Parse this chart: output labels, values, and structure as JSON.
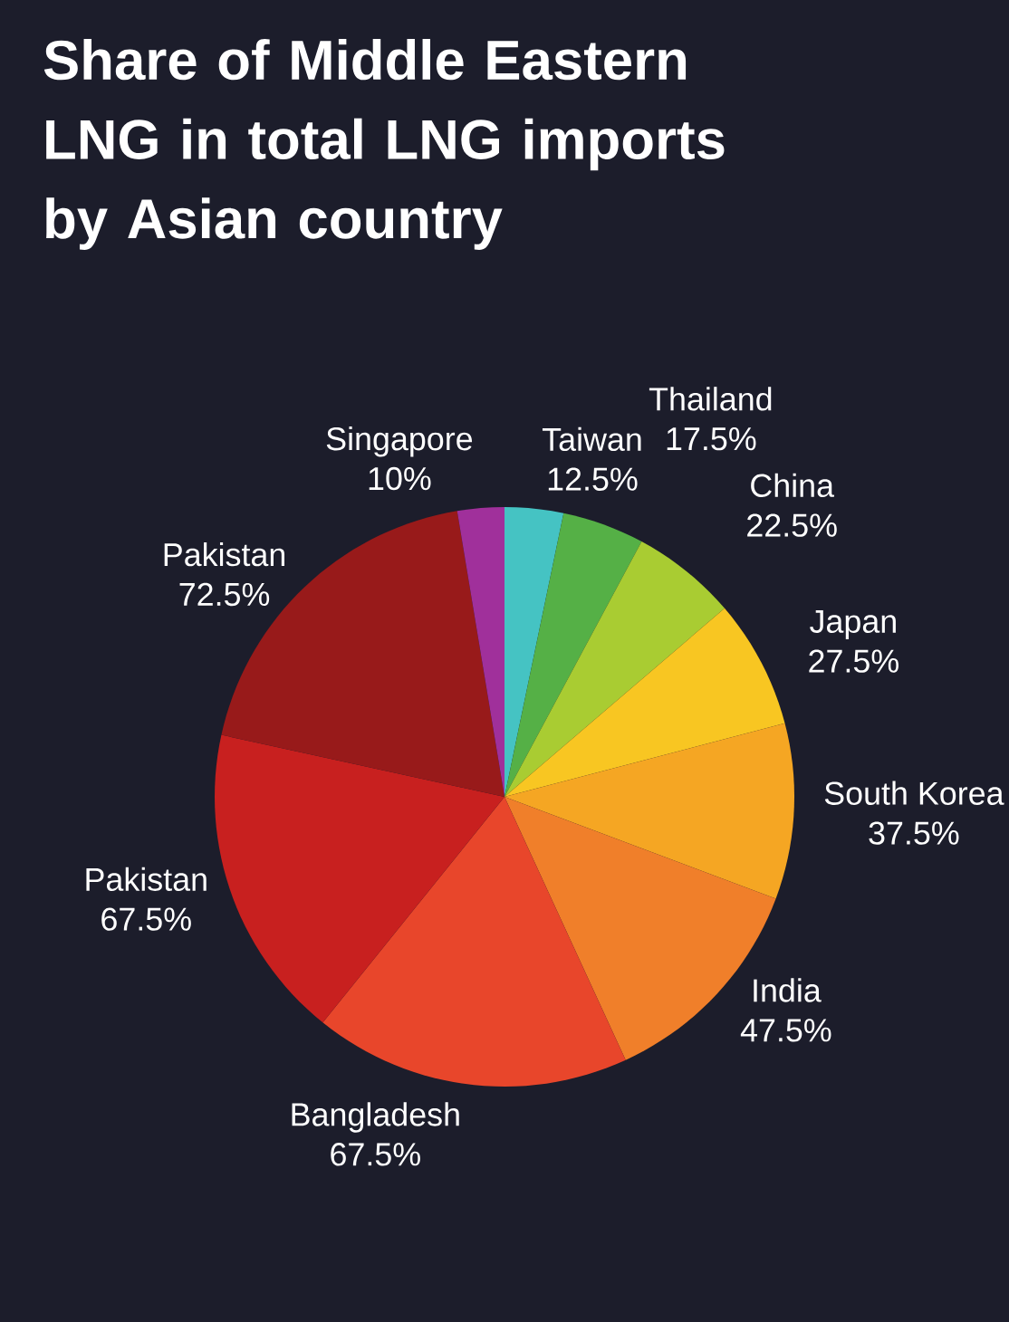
{
  "chart_data": {
    "type": "pie",
    "title": "Share of Middle Eastern LNG in total LNG imports by Asian country",
    "categories": [
      "Taiwan",
      "Thailand",
      "China",
      "Japan",
      "South Korea",
      "India",
      "Bangladesh",
      "Pakistan",
      "Pakistan",
      "Singapore"
    ],
    "values": [
      12.5,
      17.5,
      22.5,
      27.5,
      37.5,
      47.5,
      67.5,
      67.5,
      72.5,
      10
    ],
    "value_labels": [
      "12.5%",
      "17.5%",
      "22.5%",
      "27.5%",
      "37.5%",
      "47.5%",
      "67.5%",
      "67.5%",
      "72.5%",
      "10%"
    ],
    "colors": [
      "#45c3c3",
      "#55b046",
      "#a9cc32",
      "#f8c622",
      "#f5a623",
      "#f07f2a",
      "#e8462b",
      "#c8201f",
      "#981a1a",
      "#a0309b"
    ]
  }
}
